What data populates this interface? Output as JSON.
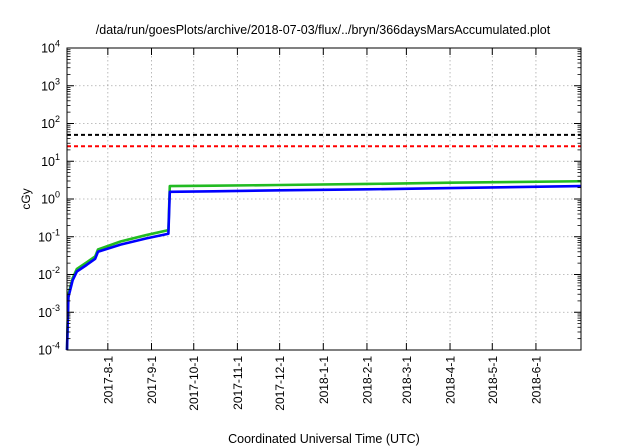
{
  "chart_data": {
    "type": "line",
    "title": "/data/run/goesPlots/archive/2018-07-03/flux/../bryn/366daysMarsAccumulated.plot",
    "xlabel": "Coordinated Universal Time (UTC)",
    "ylabel": "cGy",
    "yscale": "log",
    "ylim": [
      0.0001,
      10000
    ],
    "xlim": [
      "2017-07-03",
      "2018-07-03"
    ],
    "grid": true,
    "x_ticks": [
      "2017-8-1",
      "2017-9-1",
      "2017-10-1",
      "2017-11-1",
      "2017-12-1",
      "2018-1-1",
      "2018-2-1",
      "2018-3-1",
      "2018-4-1",
      "2018-5-1",
      "2018-6-1"
    ],
    "y_ticks": [
      {
        "value": 0.0001,
        "base": "10",
        "exp": "-4"
      },
      {
        "value": 0.001,
        "base": "10",
        "exp": "-3"
      },
      {
        "value": 0.01,
        "base": "10",
        "exp": "-2"
      },
      {
        "value": 0.1,
        "base": "10",
        "exp": "-1"
      },
      {
        "value": 1,
        "base": "10",
        "exp": "0"
      },
      {
        "value": 10,
        "base": "10",
        "exp": "1"
      },
      {
        "value": 100,
        "base": "10",
        "exp": "2"
      },
      {
        "value": 1000,
        "base": "10",
        "exp": "3"
      },
      {
        "value": 10000,
        "base": "10",
        "exp": "4"
      }
    ],
    "reference_lines": [
      {
        "y": 50,
        "color": "#000000",
        "style": "dashed"
      },
      {
        "y": 25,
        "color": "#ff0000",
        "style": "dashed"
      }
    ],
    "series": [
      {
        "color": "#22bb22",
        "points": [
          [
            "2017-07-03",
            0.0001
          ],
          [
            "2017-07-04",
            0.003
          ],
          [
            "2017-07-07",
            0.008
          ],
          [
            "2017-07-10",
            0.014
          ],
          [
            "2017-07-17",
            0.021
          ],
          [
            "2017-07-23",
            0.03
          ],
          [
            "2017-07-25",
            0.046
          ],
          [
            "2017-08-10",
            0.075
          ],
          [
            "2017-08-28",
            0.11
          ],
          [
            "2017-09-13",
            0.15
          ],
          [
            "2017-09-14",
            2.2
          ],
          [
            "2017-10-15",
            2.25
          ],
          [
            "2017-12-01",
            2.35
          ],
          [
            "2018-02-01",
            2.5
          ],
          [
            "2018-04-01",
            2.7
          ],
          [
            "2018-07-03",
            2.95
          ]
        ]
      },
      {
        "color": "#0000ff",
        "points": [
          [
            "2017-07-03",
            0.0001
          ],
          [
            "2017-07-04",
            0.0025
          ],
          [
            "2017-07-07",
            0.007
          ],
          [
            "2017-07-10",
            0.012
          ],
          [
            "2017-07-17",
            0.018
          ],
          [
            "2017-07-23",
            0.026
          ],
          [
            "2017-07-25",
            0.04
          ],
          [
            "2017-08-10",
            0.062
          ],
          [
            "2017-08-28",
            0.09
          ],
          [
            "2017-09-13",
            0.12
          ],
          [
            "2017-09-14",
            1.55
          ],
          [
            "2017-10-15",
            1.6
          ],
          [
            "2017-12-01",
            1.7
          ],
          [
            "2018-02-01",
            1.8
          ],
          [
            "2018-04-01",
            1.95
          ],
          [
            "2018-07-03",
            2.2
          ]
        ]
      }
    ]
  }
}
